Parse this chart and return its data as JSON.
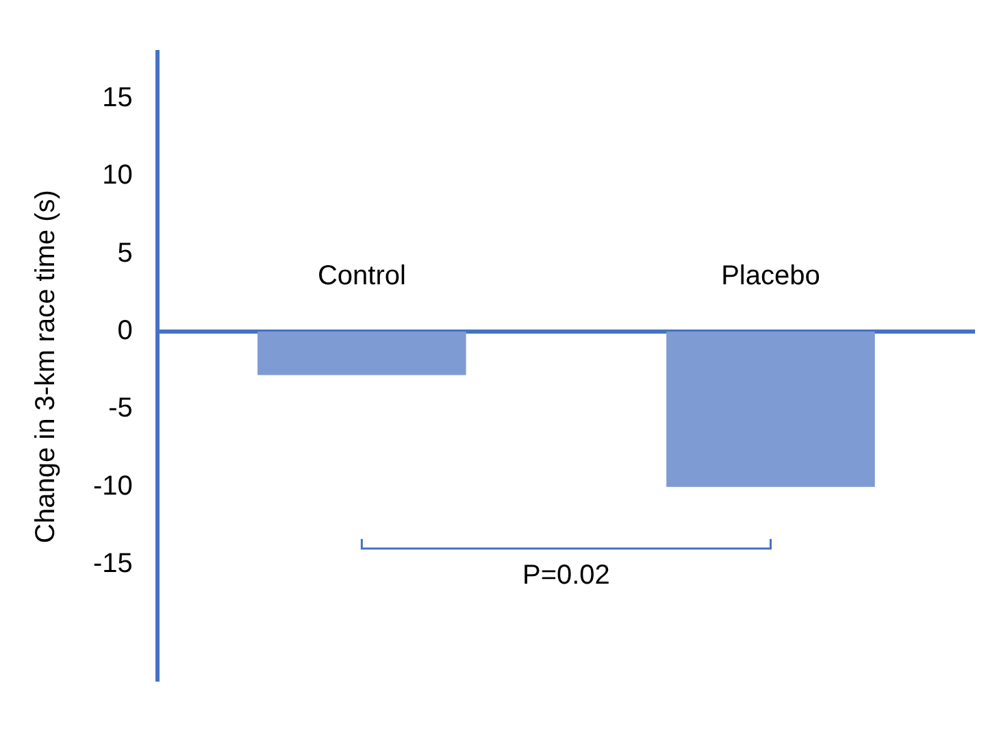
{
  "chart_data": {
    "type": "bar",
    "ylabel": "Change in 3-km race time (s)",
    "categories": [
      "Control",
      "Placebo"
    ],
    "values": [
      -2.8,
      -10
    ],
    "color": "#7f9bd3",
    "ylim": [
      -22.5,
      18
    ],
    "yticks": [
      -15,
      -10,
      -5,
      0,
      5,
      10,
      15
    ],
    "grid": false,
    "legend": false,
    "annotations": [
      "P=0.02"
    ]
  }
}
